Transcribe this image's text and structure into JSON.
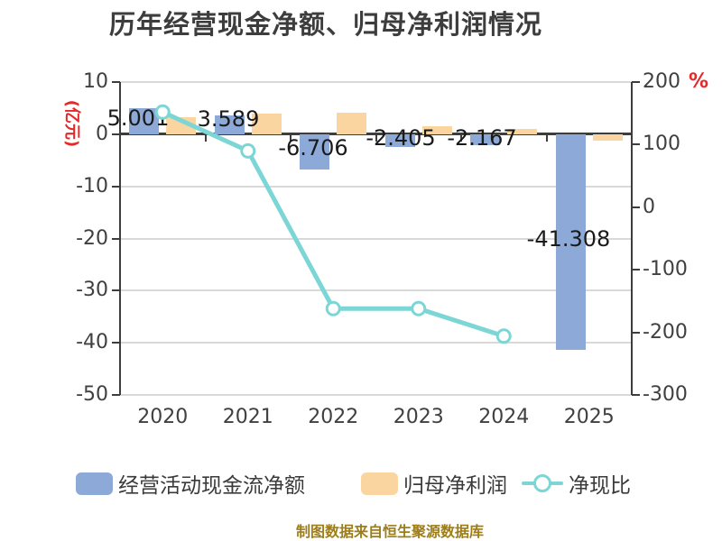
{
  "title": "历年经营现金净额、归母净利润情况",
  "source_note": "制图数据来自恒生聚源数据库",
  "colors": {
    "bar_blue": "#8da9d8",
    "bar_orange": "#fad5a0",
    "line_teal": "#7dd6d6",
    "axis_text": "#404040",
    "unit_red": "#e62828",
    "source_gold": "#9e7d18",
    "grid": "#d9d9d9",
    "axis_line": "#3d3d3d"
  },
  "legend": [
    {
      "id": "operating-cash-flow",
      "label": "经营活动现金流净额",
      "type": "bar",
      "color": "#8da9d8"
    },
    {
      "id": "net-profit",
      "label": "归母净利润",
      "type": "bar",
      "color": "#fad5a0"
    },
    {
      "id": "cash-ratio",
      "label": "净现比",
      "type": "line",
      "color": "#7dd6d6"
    }
  ],
  "chart_data": {
    "type": "bar",
    "title": "历年经营现金净额、归母净利润情况",
    "categories": [
      "2020",
      "2021",
      "2022",
      "2023",
      "2024",
      "2025"
    ],
    "series": [
      {
        "id": "operating-cash-flow",
        "name": "经营活动现金流净额",
        "type": "bar",
        "axis": "left",
        "color": "#8da9d8",
        "values": [
          5.001,
          3.589,
          -6.706,
          -2.405,
          -2.167,
          -41.308
        ],
        "data_labels": [
          "5.001",
          "3.589",
          "-6.706",
          "-2.405",
          "-2.167",
          "-41.308"
        ]
      },
      {
        "id": "net-profit",
        "name": "归母净利润",
        "type": "bar",
        "axis": "left",
        "color": "#fad5a0",
        "values": [
          3.3,
          4.0,
          4.15,
          1.5,
          1.05,
          -1.2
        ],
        "data_labels": []
      },
      {
        "id": "cash-ratio",
        "name": "净现比",
        "type": "line",
        "axis": "right",
        "color": "#7dd6d6",
        "values": [
          152,
          90,
          -162,
          -162,
          -206,
          null
        ]
      }
    ],
    "left_axis": {
      "label": "(亿元)",
      "min": -50,
      "max": 10,
      "ticks": [
        10,
        0,
        -10,
        -20,
        -30,
        -40,
        -50
      ]
    },
    "right_axis": {
      "label": "%",
      "min": -300,
      "max": 200,
      "ticks": [
        200,
        100,
        0,
        -100,
        -200,
        -300
      ]
    },
    "grid": true,
    "legend_position": "bottom"
  }
}
